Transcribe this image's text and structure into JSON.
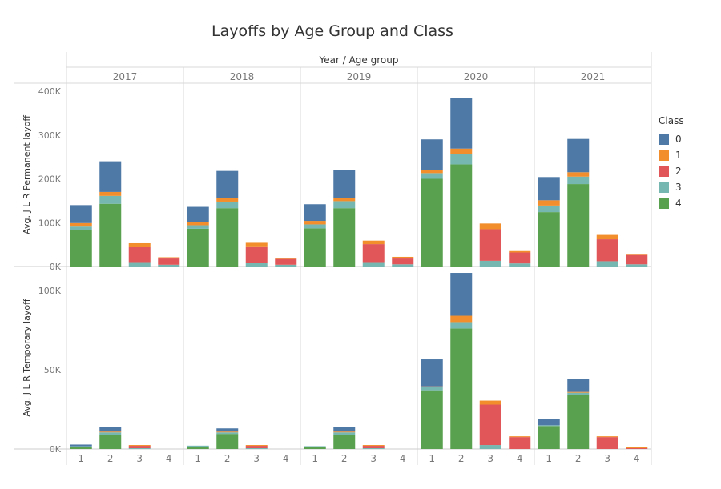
{
  "chart_data": {
    "type": "bar",
    "stacked": true,
    "title": "Layoffs by Age Group and Class",
    "column_header": "Year  /  Age group",
    "years": [
      "2017",
      "2018",
      "2019",
      "2020",
      "2021"
    ],
    "age_groups": [
      "1",
      "2",
      "3",
      "4"
    ],
    "legend": {
      "title": "Class",
      "items": [
        {
          "name": "0",
          "color": "#4e79a7"
        },
        {
          "name": "1",
          "color": "#f28e2b"
        },
        {
          "name": "2",
          "color": "#e15759"
        },
        {
          "name": "3",
          "color": "#76b7b2"
        },
        {
          "name": "4",
          "color": "#59a14f"
        }
      ]
    },
    "stack_order": [
      "4",
      "3",
      "2",
      "1",
      "0"
    ],
    "panels": [
      {
        "ylabel": "Avg. J L R Permanent layoff",
        "ylim": [
          0,
          400000
        ],
        "ticks": [
          0,
          100000,
          200000,
          300000,
          400000
        ],
        "tick_labels": [
          "0K",
          "100K",
          "200K",
          "300K",
          "400K"
        ],
        "data": {
          "2017": {
            "1": {
              "4": 84000,
              "3": 7000,
              "2": 0,
              "1": 8000,
              "0": 41000
            },
            "2": {
              "4": 143000,
              "3": 18000,
              "2": 0,
              "1": 9000,
              "0": 70000
            },
            "3": {
              "4": 0,
              "3": 10000,
              "2": 34000,
              "1": 9000,
              "0": 0
            },
            "4": {
              "4": 0,
              "3": 4000,
              "2": 16000,
              "1": 1000,
              "0": 0
            }
          },
          "2018": {
            "1": {
              "4": 86000,
              "3": 8000,
              "2": 0,
              "1": 8000,
              "0": 34000
            },
            "2": {
              "4": 133000,
              "3": 15000,
              "2": 0,
              "1": 9000,
              "0": 61000
            },
            "3": {
              "4": 0,
              "3": 8000,
              "2": 38000,
              "1": 8000,
              "0": 0
            },
            "4": {
              "4": 0,
              "3": 4000,
              "2": 15000,
              "1": 1000,
              "0": 0
            }
          },
          "2019": {
            "1": {
              "4": 87000,
              "3": 9000,
              "2": 0,
              "1": 8000,
              "0": 38000
            },
            "2": {
              "4": 133000,
              "3": 16000,
              "2": 0,
              "1": 8000,
              "0": 63000
            },
            "3": {
              "4": 0,
              "3": 10000,
              "2": 41000,
              "1": 8000,
              "0": 0
            },
            "4": {
              "4": 0,
              "3": 5000,
              "2": 15000,
              "1": 2000,
              "0": 0
            }
          },
          "2020": {
            "1": {
              "4": 200000,
              "3": 13000,
              "2": 0,
              "1": 8000,
              "0": 69000
            },
            "2": {
              "4": 233000,
              "3": 23000,
              "2": 0,
              "1": 13000,
              "0": 115000
            },
            "3": {
              "4": 0,
              "3": 13000,
              "2": 72000,
              "1": 13000,
              "0": 0
            },
            "4": {
              "4": 0,
              "3": 7000,
              "2": 25000,
              "1": 5000,
              "0": 0
            }
          },
          "2021": {
            "1": {
              "4": 124000,
              "3": 15000,
              "2": 0,
              "1": 12000,
              "0": 53000
            },
            "2": {
              "4": 188000,
              "3": 17000,
              "2": 0,
              "1": 10000,
              "0": 76000
            },
            "3": {
              "4": 0,
              "3": 12000,
              "2": 50000,
              "1": 10000,
              "0": 0
            },
            "4": {
              "4": 0,
              "3": 5000,
              "2": 23000,
              "1": 1000,
              "0": 0
            }
          }
        }
      },
      {
        "ylabel": "Avg. J L R Temporary layoff",
        "ylim": [
          0,
          110000
        ],
        "ticks": [
          0,
          50000,
          100000
        ],
        "tick_labels": [
          "0K",
          "50K",
          "100K"
        ],
        "data": {
          "2017": {
            "1": {
              "4": 1200,
              "3": 600,
              "2": 0,
              "1": 0,
              "0": 1000
            },
            "2": {
              "4": 9000,
              "3": 1500,
              "2": 0,
              "1": 500,
              "0": 3000
            },
            "3": {
              "4": 0,
              "3": 500,
              "2": 1500,
              "1": 500,
              "0": 0
            },
            "4": {
              "4": 0,
              "3": 0,
              "2": 0,
              "1": 0,
              "0": 0
            }
          },
          "2018": {
            "1": {
              "4": 1500,
              "3": 600,
              "2": 0,
              "1": 0,
              "0": 0
            },
            "2": {
              "4": 9500,
              "3": 1000,
              "2": 0,
              "1": 500,
              "0": 2000
            },
            "3": {
              "4": 0,
              "3": 500,
              "2": 1500,
              "1": 500,
              "0": 0
            },
            "4": {
              "4": 0,
              "3": 0,
              "2": 0,
              "1": 0,
              "0": 0
            }
          },
          "2019": {
            "1": {
              "4": 1200,
              "3": 600,
              "2": 0,
              "1": 0,
              "0": 0
            },
            "2": {
              "4": 9000,
              "3": 1500,
              "2": 0,
              "1": 500,
              "0": 3000
            },
            "3": {
              "4": 0,
              "3": 500,
              "2": 1500,
              "1": 500,
              "0": 0
            },
            "4": {
              "4": 0,
              "3": 0,
              "2": 0,
              "1": 0,
              "0": 0
            }
          },
          "2020": {
            "1": {
              "4": 37000,
              "3": 2000,
              "2": 0,
              "1": 500,
              "0": 17000
            },
            "2": {
              "4": 76000,
              "3": 4000,
              "2": 0,
              "1": 4000,
              "0": 27000
            },
            "3": {
              "4": 0,
              "3": 2500,
              "2": 25500,
              "1": 2500,
              "0": 0
            },
            "4": {
              "4": 0,
              "3": 0,
              "2": 7500,
              "1": 500,
              "0": 0
            }
          },
          "2021": {
            "1": {
              "4": 14500,
              "3": 500,
              "2": 0,
              "1": 0,
              "0": 4000
            },
            "2": {
              "4": 34000,
              "3": 1500,
              "2": 0,
              "1": 500,
              "0": 8000
            },
            "3": {
              "4": 0,
              "3": 0,
              "2": 7500,
              "1": 500,
              "0": 0
            },
            "4": {
              "4": 0,
              "3": 0,
              "2": 500,
              "1": 500,
              "0": 0
            }
          }
        }
      }
    ]
  }
}
